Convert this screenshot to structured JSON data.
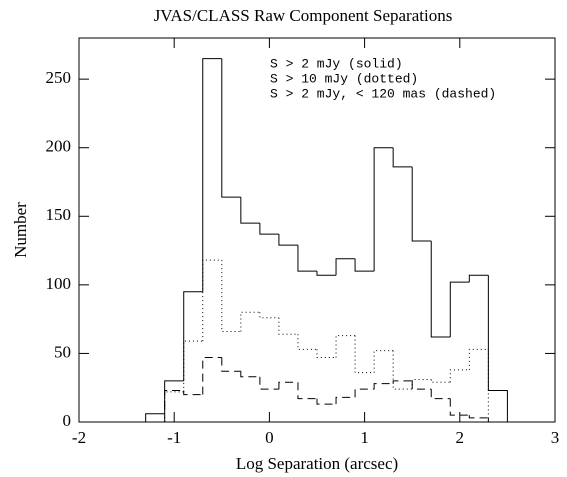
{
  "chart_data": {
    "type": "histogram",
    "title": "JVAS/CLASS Raw Component Separations",
    "x_label": "Log Separation (arcsec)",
    "y_label": "Number",
    "bins": [
      -1.3,
      -1.1,
      -0.9,
      -0.7,
      -0.5,
      -0.3,
      -0.1,
      0.1,
      0.3,
      0.5,
      0.7,
      0.9,
      1.1,
      1.3,
      1.5,
      1.7,
      1.9,
      2.1,
      2.3,
      2.5
    ],
    "series": [
      {
        "name": "S > 2 mJy (solid)",
        "color": "#000000",
        "line_style": "solid",
        "values": [
          6,
          30,
          95,
          265,
          164,
          145,
          137,
          129,
          110,
          107,
          119,
          110,
          200,
          186,
          132,
          62,
          102,
          107,
          23
        ]
      },
      {
        "name": "S > 10 mJy (dotted)",
        "color": "#000000",
        "line_style": "dotted",
        "values": [
          0,
          22,
          59,
          118,
          66,
          80,
          76,
          64,
          53,
          47,
          63,
          36,
          52,
          24,
          31,
          29,
          38,
          53,
          0
        ]
      },
      {
        "name": "S > 2 mJy, < 120 mas (dashed)",
        "color": "#000000",
        "line_style": "dashed",
        "values": [
          0,
          23,
          20,
          47,
          37,
          33,
          24,
          29,
          17,
          13,
          18,
          24,
          28,
          30,
          24,
          17,
          5,
          3,
          0
        ]
      }
    ],
    "xlim": [
      -2,
      3
    ],
    "xticks": [
      -2,
      -1,
      0,
      1,
      2,
      3
    ],
    "ylim": [
      0,
      280
    ],
    "yticks": [
      0,
      50,
      100,
      150,
      200,
      250
    ]
  }
}
